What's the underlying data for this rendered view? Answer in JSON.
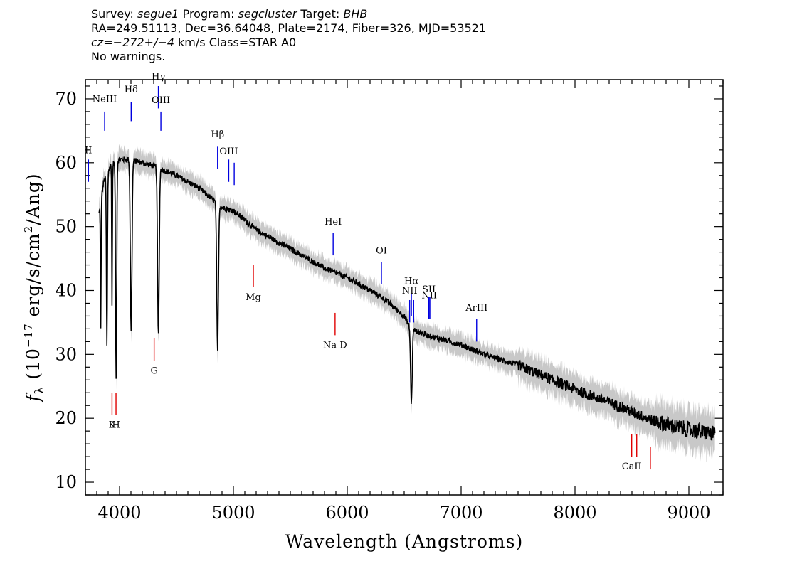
{
  "header": {
    "line1": {
      "survey_label": "Survey:",
      "survey": "segue1",
      "program_label": "Program:",
      "program": "segcluster",
      "target_label": "Target:",
      "target": "BHB"
    },
    "line2": "RA=249.51113, Dec=36.64048, Plate=2174, Fiber=326, MJD=53521",
    "line3": {
      "cz": "cz=−272+/−4",
      "rest": " km/s  Class=STAR A0"
    },
    "line4": "No warnings."
  },
  "chart_data": {
    "type": "line",
    "xlabel": "Wavelength (Angstroms)",
    "ylabel_prefix": "f",
    "ylabel_sub": "λ",
    "ylabel_units": "(10",
    "ylabel_exp": "−17",
    "ylabel_rest1": " erg/s/cm",
    "ylabel_exp2": "2",
    "ylabel_rest2": "/Ang)",
    "xlim": [
      3700,
      9300
    ],
    "ylim": [
      8,
      73
    ],
    "xticks": [
      4000,
      5000,
      6000,
      7000,
      8000,
      9000
    ],
    "yticks": [
      10,
      20,
      30,
      40,
      50,
      60,
      70
    ],
    "continuum": [
      [
        3820,
        52
      ],
      [
        3860,
        57
      ],
      [
        3920,
        59.5
      ],
      [
        4000,
        60.5
      ],
      [
        4100,
        60.5
      ],
      [
        4300,
        59.5
      ],
      [
        4500,
        58
      ],
      [
        4700,
        56
      ],
      [
        4900,
        53
      ],
      [
        5000,
        52.5
      ],
      [
        5200,
        49.5
      ],
      [
        5500,
        46.5
      ],
      [
        5800,
        43.5
      ],
      [
        6000,
        42
      ],
      [
        6300,
        39
      ],
      [
        6500,
        36
      ],
      [
        6560,
        34
      ],
      [
        6700,
        33
      ],
      [
        7000,
        31.5
      ],
      [
        7200,
        30
      ],
      [
        7500,
        28.3
      ],
      [
        7800,
        26
      ],
      [
        8000,
        24.5
      ],
      [
        8300,
        22.5
      ],
      [
        8500,
        21
      ],
      [
        8700,
        19.5
      ],
      [
        9000,
        18.2
      ],
      [
        9230,
        17.5
      ]
    ],
    "absorption": [
      {
        "x": 3835,
        "depth": 20,
        "w": 4
      },
      {
        "x": 3889,
        "depth": 27,
        "w": 6
      },
      {
        "x": 3934,
        "depth": 22,
        "w": 4
      },
      {
        "x": 3970,
        "depth": 34,
        "w": 7
      },
      {
        "x": 4102,
        "depth": 27,
        "w": 10
      },
      {
        "x": 4341,
        "depth": 26,
        "w": 10
      },
      {
        "x": 4861,
        "depth": 23,
        "w": 10
      },
      {
        "x": 6563,
        "depth": 11.5,
        "w": 10
      }
    ],
    "lines": [
      {
        "name": "NeIII",
        "x": 3869,
        "color": "blue",
        "kind": "emission",
        "y0": 65,
        "y1": 68,
        "ly": 69.5
      },
      {
        "name": "Hδ",
        "x": 4102,
        "color": "blue",
        "kind": "emission",
        "y0": 66.5,
        "y1": 69.5,
        "ly": 71
      },
      {
        "name": "Hγ",
        "x": 4341,
        "color": "blue",
        "kind": "emission",
        "y0": 68.5,
        "y1": 72,
        "ly": 73
      },
      {
        "name": "OIII",
        "x": 4363,
        "color": "blue",
        "kind": "emission",
        "y0": 65,
        "y1": 68,
        "ly": 69.3
      },
      {
        "name": "Hβ",
        "x": 4861,
        "color": "blue",
        "kind": "emission",
        "y0": 59,
        "y1": 62.5,
        "ly": 64
      },
      {
        "name": "OIII",
        "x": 4959,
        "color": "blue",
        "kind": "emission",
        "y0": 57,
        "y1": 60.5,
        "ly": 61.3
      },
      {
        "name": "",
        "x": 5007,
        "color": "blue",
        "kind": "emission",
        "y0": 56.5,
        "y1": 60,
        "ly": 0
      },
      {
        "name": "II",
        "x": 3727,
        "color": "blue",
        "kind": "emission",
        "y0": 57,
        "y1": 60.5,
        "ly": 61.5
      },
      {
        "name": "Mg",
        "x": 5175,
        "color": "red",
        "kind": "absorption",
        "y0": 40.5,
        "y1": 44,
        "ly": 38.5
      },
      {
        "name": "G",
        "x": 4304,
        "color": "red",
        "kind": "absorption",
        "y0": 29,
        "y1": 32.5,
        "ly": 27
      },
      {
        "name": "K",
        "x": 3934,
        "color": "red",
        "kind": "absorption",
        "y0": 20.5,
        "y1": 24,
        "ly": 18.5
      },
      {
        "name": "H",
        "x": 3969,
        "color": "red",
        "kind": "absorption",
        "y0": 20.5,
        "y1": 24,
        "ly": 18.5
      },
      {
        "name": "HeI",
        "x": 5876,
        "color": "blue",
        "kind": "emission",
        "y0": 45.5,
        "y1": 49,
        "ly": 50.3
      },
      {
        "name": "Na D",
        "x": 5893,
        "color": "red",
        "kind": "absorption",
        "y0": 33,
        "y1": 36.5,
        "ly": 31
      },
      {
        "name": "OI",
        "x": 6300,
        "color": "blue",
        "kind": "emission",
        "y0": 41,
        "y1": 44.5,
        "ly": 45.8
      },
      {
        "name": "NII",
        "x": 6548,
        "color": "blue",
        "kind": "emission",
        "y0": 35,
        "y1": 38.5,
        "ly": 39.5
      },
      {
        "name": "Hα",
        "x": 6563,
        "color": "blue",
        "kind": "emission",
        "y0": 36,
        "y1": 39.5,
        "ly": 41
      },
      {
        "name": "",
        "x": 6583,
        "color": "blue",
        "kind": "emission",
        "y0": 35,
        "y1": 38.5,
        "ly": 0
      },
      {
        "name": "SII",
        "x": 6716,
        "color": "blue",
        "kind": "emission",
        "y0": 35.5,
        "y1": 39,
        "ly": 39.7
      },
      {
        "name": "",
        "x": 6731,
        "color": "blue",
        "kind": "emission",
        "y0": 35.5,
        "y1": 39,
        "ly": 0
      },
      {
        "name": "NII",
        "x": 6720,
        "color": "blue",
        "kind": "emission",
        "y0": 35.5,
        "y1": 39,
        "ly": 38.8
      },
      {
        "name": "ArIII",
        "x": 7136,
        "color": "blue",
        "kind": "emission",
        "y0": 32,
        "y1": 35.5,
        "ly": 36.8
      },
      {
        "name": "CaII",
        "x": 8498,
        "color": "red",
        "kind": "absorption",
        "y0": 14,
        "y1": 17.5,
        "ly": 12
      },
      {
        "name": "",
        "x": 8542,
        "color": "red",
        "kind": "absorption",
        "y0": 14,
        "y1": 17.5,
        "ly": 0
      },
      {
        "name": "",
        "x": 8662,
        "color": "red",
        "kind": "absorption",
        "y0": 12,
        "y1": 15.5,
        "ly": 0
      }
    ]
  }
}
